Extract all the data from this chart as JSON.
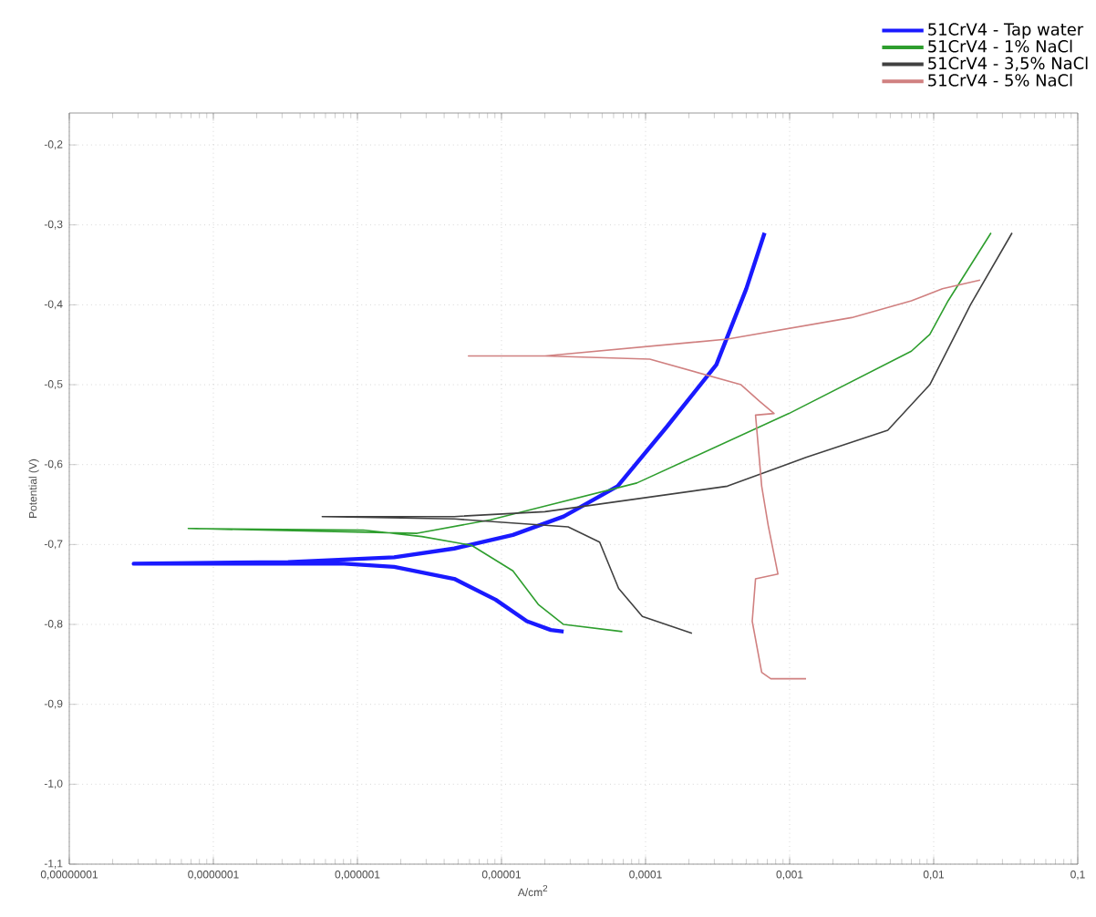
{
  "chart_data": {
    "type": "line",
    "xlabel": "A/cm$^{2}$",
    "ylabel": "Potential (V)",
    "log": "x",
    "grid": true,
    "legend": "top right",
    "xlim": [
      1e-08,
      0.1
    ],
    "ylim": [
      -1.1,
      -0.16
    ],
    "xticks": [
      {
        "value": 1e-08,
        "label": "0,00000001"
      },
      {
        "value": 1e-07,
        "label": "0,0000001"
      },
      {
        "value": 1e-06,
        "label": "0,000001"
      },
      {
        "value": 1e-05,
        "label": "0,00001"
      },
      {
        "value": 0.0001,
        "label": "0,0001"
      },
      {
        "value": 0.001,
        "label": "0,001"
      },
      {
        "value": 0.01,
        "label": "0,01"
      },
      {
        "value": 0.1,
        "label": "0,1"
      }
    ],
    "yticks": [
      {
        "value": -0.2,
        "label": "-0,2"
      },
      {
        "value": -0.3,
        "label": "-0,3"
      },
      {
        "value": -0.4,
        "label": "-0,4"
      },
      {
        "value": -0.5,
        "label": "-0,5"
      },
      {
        "value": -0.6,
        "label": "-0,6"
      },
      {
        "value": -0.7,
        "label": "-0,7"
      },
      {
        "value": -0.8,
        "label": "-0,8"
      },
      {
        "value": -0.9,
        "label": "-0,9"
      },
      {
        "value": -1.0,
        "label": "-1,0"
      },
      {
        "value": -1.1,
        "label": "-1,1"
      }
    ],
    "series": [
      {
        "name": "51CrV4 - Tap water",
        "color": "#1a1aff",
        "x": [
          2.7e-05,
          2.2e-05,
          1.5e-05,
          9.1e-06,
          4.7e-06,
          1.8e-06,
          8.1e-07,
          1.4e-07,
          2.8e-08,
          3.3e-07,
          1.8e-06,
          4.7e-06,
          1.2e-05,
          2.7e-05,
          6.4e-05,
          0.00014,
          0.00031,
          0.0005,
          0.00067
        ],
        "values": [
          -0.809,
          -0.807,
          -0.796,
          -0.769,
          -0.743,
          -0.728,
          -0.724,
          -0.724,
          -0.724,
          -0.722,
          -0.716,
          -0.705,
          -0.688,
          -0.665,
          -0.627,
          -0.553,
          -0.475,
          -0.38,
          -0.31
        ]
      },
      {
        "name": "51CrV4 - 1% NaCl",
        "color": "#2e9e2e",
        "x": [
          6.9e-05,
          2.7e-05,
          1.8e-05,
          1.2e-05,
          6.2e-06,
          2.8e-06,
          1.1e-06,
          6.7e-08,
          2.6e-06,
          8.4e-06,
          2e-05,
          8.7e-05,
          0.00099,
          0.007,
          0.0094,
          0.0126,
          0.025
        ],
        "values": [
          -0.809,
          -0.8,
          -0.775,
          -0.733,
          -0.701,
          -0.69,
          -0.682,
          -0.68,
          -0.686,
          -0.669,
          -0.652,
          -0.623,
          -0.536,
          -0.458,
          -0.437,
          -0.395,
          -0.31
        ]
      },
      {
        "name": "51CrV4 - 3,5% NaCl",
        "color": "#404040",
        "x": [
          0.00021,
          9.5e-05,
          6.5e-05,
          4.8e-05,
          2.9e-05,
          4.7e-06,
          5.7e-07,
          4.7e-06,
          2e-05,
          0.00037,
          0.0013,
          0.0048,
          0.0094,
          0.018,
          0.035
        ],
        "values": [
          -0.811,
          -0.79,
          -0.755,
          -0.697,
          -0.678,
          -0.668,
          -0.665,
          -0.665,
          -0.659,
          -0.627,
          -0.591,
          -0.557,
          -0.5,
          -0.4,
          -0.31
        ]
      },
      {
        "name": "51CrV4 - 5% NaCl",
        "color": "#d08080",
        "x": [
          0.0013,
          0.00074,
          0.00064,
          0.00055,
          0.00058,
          0.00083,
          0.00071,
          0.00064,
          0.00058,
          0.00078,
          0.00062,
          0.00046,
          0.000107,
          2e-05,
          5.9e-06,
          2e-05,
          0.00037,
          0.0027,
          0.007,
          0.0115,
          0.021
        ],
        "values": [
          -0.868,
          -0.868,
          -0.86,
          -0.796,
          -0.743,
          -0.737,
          -0.676,
          -0.627,
          -0.538,
          -0.536,
          -0.521,
          -0.5,
          -0.468,
          -0.464,
          -0.464,
          -0.464,
          -0.443,
          -0.416,
          -0.395,
          -0.38,
          -0.369
        ]
      }
    ]
  }
}
